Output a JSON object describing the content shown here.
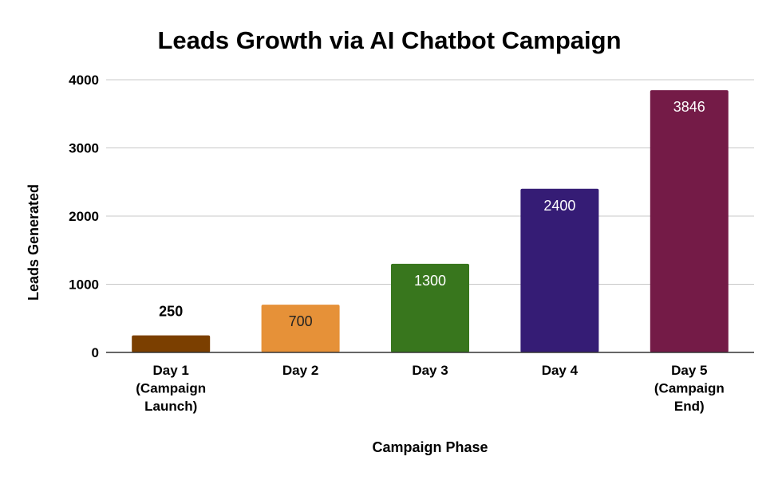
{
  "chart_data": {
    "type": "bar",
    "title": "Leads Growth via AI Chatbot Campaign",
    "xlabel": "Campaign Phase",
    "ylabel": "Leads Generated",
    "categories": [
      [
        "Day 1",
        "(Campaign",
        "Launch)"
      ],
      [
        "Day 2"
      ],
      [
        "Day 3"
      ],
      [
        "Day 4"
      ],
      [
        "Day 5",
        "(Campaign",
        "End)"
      ]
    ],
    "values": [
      250,
      700,
      1300,
      2400,
      3846
    ],
    "data_labels": [
      "250",
      "700",
      "1300",
      "2400",
      "3846"
    ],
    "colors": [
      "#7b3f00",
      "#e69138",
      "#38761d",
      "#351c75",
      "#741b47"
    ],
    "label_colors": [
      "#000000",
      "#222222",
      "#ffffff",
      "#ffffff",
      "#ffffff"
    ],
    "ylim": [
      0,
      4000
    ],
    "yticks": [
      0,
      1000,
      2000,
      3000,
      4000
    ],
    "grid": true,
    "legend": "none"
  }
}
